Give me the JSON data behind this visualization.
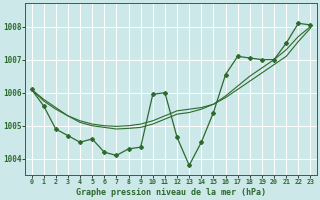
{
  "title": "Graphe pression niveau de la mer (hPa)",
  "bg_color": "#cce8e8",
  "line_color": "#2d6a2d",
  "grid_color": "#ffffff",
  "xlim": [
    -0.5,
    23.5
  ],
  "ylim": [
    1003.5,
    1008.7
  ],
  "yticks": [
    1004,
    1005,
    1006,
    1007,
    1008
  ],
  "xtick_labels": [
    "0",
    "1",
    "2",
    "3",
    "4",
    "5",
    "6",
    "7",
    "8",
    "9",
    "10",
    "11",
    "12",
    "13",
    "14",
    "15",
    "16",
    "17",
    "18",
    "19",
    "20",
    "21",
    "22",
    "23"
  ],
  "main_x": [
    0,
    1,
    2,
    3,
    4,
    5,
    6,
    7,
    8,
    9,
    10,
    11,
    12,
    13,
    14,
    15,
    16,
    17,
    18,
    19,
    20,
    21,
    22,
    23
  ],
  "main_y": [
    1006.1,
    1005.6,
    1004.9,
    1004.7,
    1004.5,
    1004.6,
    1004.2,
    1004.1,
    1004.3,
    1004.35,
    1005.95,
    1006.0,
    1004.65,
    1003.8,
    1004.5,
    1005.4,
    1006.55,
    1007.1,
    1007.05,
    1007.0,
    1007.0,
    1007.5,
    1008.1,
    1008.05
  ],
  "smooth1_x": [
    0,
    1,
    2,
    3,
    4,
    5,
    6,
    7,
    8,
    9,
    10,
    11,
    12,
    13,
    14,
    15,
    16,
    17,
    18,
    19,
    20,
    21,
    22,
    23
  ],
  "smooth1_y": [
    1006.1,
    1005.8,
    1005.55,
    1005.3,
    1005.15,
    1005.05,
    1005.0,
    1004.98,
    1005.0,
    1005.05,
    1005.15,
    1005.3,
    1005.45,
    1005.5,
    1005.55,
    1005.65,
    1005.85,
    1006.1,
    1006.35,
    1006.6,
    1006.85,
    1007.1,
    1007.55,
    1007.95
  ],
  "smooth2_x": [
    0,
    1,
    2,
    3,
    4,
    5,
    6,
    7,
    8,
    9,
    10,
    11,
    12,
    13,
    14,
    15,
    16,
    17,
    18,
    19,
    20,
    21,
    22,
    23
  ],
  "smooth2_y": [
    1006.1,
    1005.75,
    1005.5,
    1005.3,
    1005.1,
    1005.0,
    1004.95,
    1004.9,
    1004.92,
    1004.95,
    1005.05,
    1005.2,
    1005.35,
    1005.4,
    1005.5,
    1005.65,
    1005.9,
    1006.2,
    1006.5,
    1006.75,
    1007.0,
    1007.3,
    1007.7,
    1008.0
  ]
}
